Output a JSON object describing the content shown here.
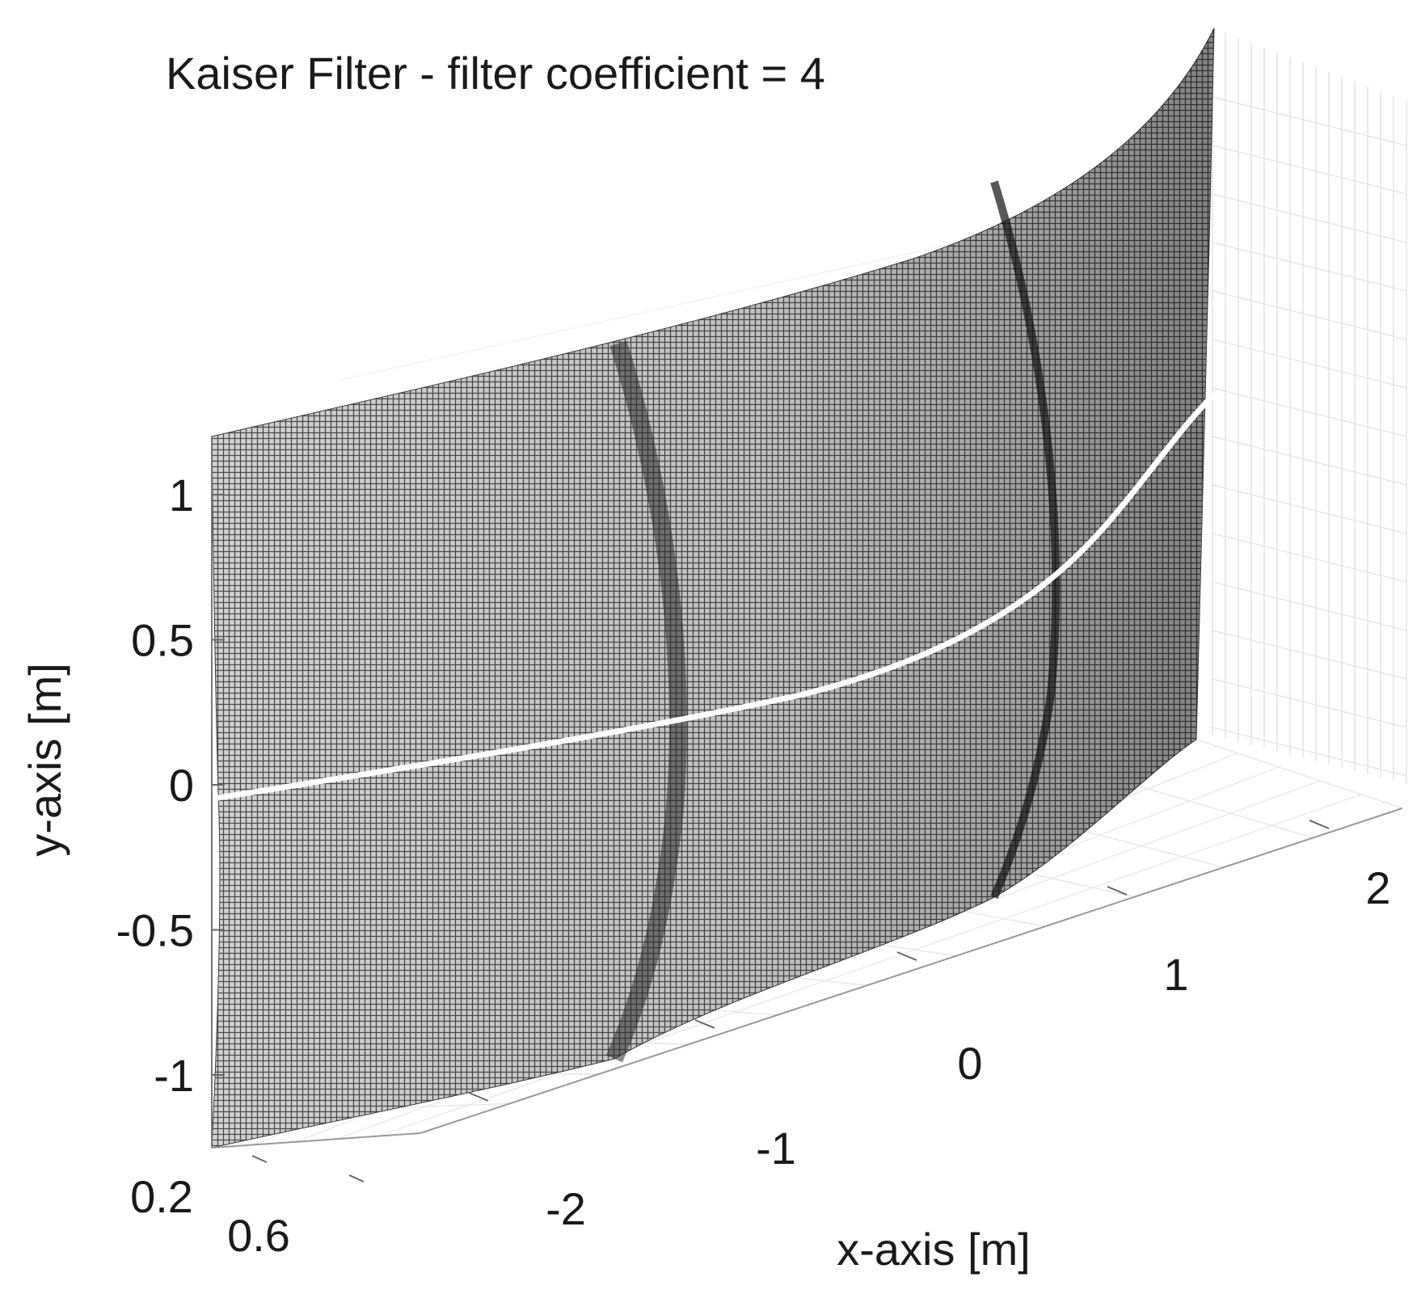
{
  "chart_data": {
    "type": "surface",
    "title": "Kaiser Filter - filter coefficient = 4",
    "xlabel": "x-axis [m]",
    "ylabel": "y-axis [m]",
    "zlabel": "",
    "x_ticks": [
      "-2",
      "-1",
      "0",
      "1",
      "2"
    ],
    "y_ticks": [
      "-1",
      "-0.5",
      "0",
      "0.5",
      "1"
    ],
    "z_ticks": [
      "0.2",
      "0.6"
    ],
    "xlim": [
      -2.5,
      2.5
    ],
    "ylim": [
      -1.25,
      1.25
    ],
    "grid": true,
    "colormap": "gray",
    "highlight_line_color": "#ffffff",
    "highlight_line": {
      "x": [
        -2.5,
        -2.0,
        -1.5,
        -1.0,
        -0.5,
        0.0,
        0.5,
        1.0,
        1.5,
        2.0,
        2.5
      ],
      "y": [
        -0.05,
        0.0,
        0.06,
        0.12,
        0.2,
        0.3,
        0.45,
        0.62,
        0.85,
        1.02,
        1.15
      ]
    }
  }
}
